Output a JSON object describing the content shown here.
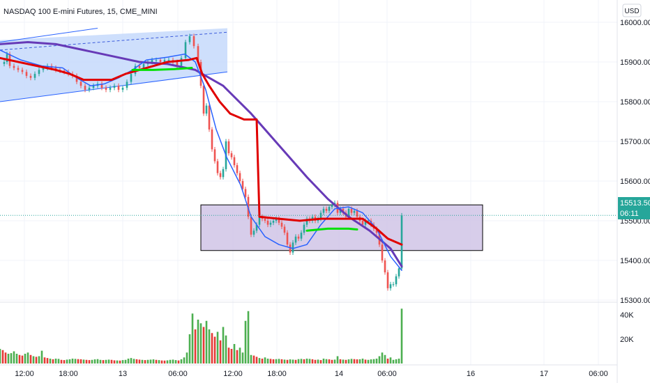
{
  "header": {
    "symbol_title": "NASDAQ 100 E-mini Futures, 15, CME_MINI",
    "currency_button": "USD"
  },
  "price_tag": {
    "price": "15513.50",
    "countdown": "06:11",
    "color": "#26a69a"
  },
  "colors": {
    "up": "#26a69a",
    "down": "#ef5350",
    "vol_up": "#4caf50",
    "vol_down": "#e53935",
    "channel_fill": "#c5d9fb",
    "channel_line": "#2962ff",
    "zone_fill": "#d3c8e8",
    "ma_purple": "#673ab7",
    "ma_blue": "#2962ff",
    "ma_red": "#e00000",
    "ma_green": "#00e000",
    "grid": "#f0f3fa"
  },
  "chart_data": {
    "type": "line",
    "title": "NASDAQ 100 E-mini Futures, 15, CME_MINI",
    "xlabel": "",
    "ylabel": "",
    "x_tick_labels": [
      "12:00",
      "18:00",
      "13",
      "06:00",
      "12:00",
      "18:00",
      "14",
      "06:00",
      "16",
      "17",
      "06:00"
    ],
    "y_tick_labels": [
      "16000.00",
      "15900.00",
      "15800.00",
      "15700.00",
      "15600.00",
      "15500.00",
      "15400.00",
      "15300.00"
    ],
    "y_tick_values": [
      16000,
      15900,
      15800,
      15700,
      15600,
      15500,
      15400,
      15300
    ],
    "volume_tick_labels": [
      "40K",
      "20K"
    ],
    "volume_tick_values": [
      40000,
      20000
    ],
    "ylim": [
      15270,
      16030
    ],
    "volume_ylim": [
      0,
      47000
    ],
    "last_price": 15513.5,
    "price_path": [
      [
        0,
        15895
      ],
      [
        6,
        15900
      ],
      [
        10,
        15920
      ],
      [
        14,
        15890
      ],
      [
        20,
        15885
      ],
      [
        26,
        15880
      ],
      [
        32,
        15875
      ],
      [
        38,
        15865
      ],
      [
        44,
        15860
      ],
      [
        50,
        15870
      ],
      [
        56,
        15880
      ],
      [
        62,
        15885
      ],
      [
        68,
        15890
      ],
      [
        74,
        15885
      ],
      [
        80,
        15880
      ],
      [
        86,
        15878
      ],
      [
        92,
        15875
      ],
      [
        98,
        15870
      ],
      [
        104,
        15865
      ],
      [
        110,
        15850
      ],
      [
        116,
        15840
      ],
      [
        122,
        15830
      ],
      [
        128,
        15835
      ],
      [
        134,
        15840
      ],
      [
        140,
        15845
      ],
      [
        146,
        15835
      ],
      [
        152,
        15830
      ],
      [
        158,
        15835
      ],
      [
        164,
        15840
      ],
      [
        170,
        15830
      ],
      [
        176,
        15835
      ],
      [
        182,
        15850
      ],
      [
        188,
        15870
      ],
      [
        194,
        15890
      ],
      [
        200,
        15885
      ],
      [
        206,
        15895
      ],
      [
        212,
        15900
      ],
      [
        218,
        15905
      ],
      [
        224,
        15905
      ],
      [
        230,
        15900
      ],
      [
        236,
        15905
      ],
      [
        242,
        15905
      ],
      [
        248,
        15900
      ],
      [
        254,
        15890
      ],
      [
        260,
        15910
      ],
      [
        266,
        15950
      ],
      [
        272,
        15965
      ],
      [
        278,
        15940
      ],
      [
        284,
        15900
      ],
      [
        288,
        15840
      ],
      [
        292,
        15770
      ],
      [
        296,
        15790
      ],
      [
        300,
        15730
      ],
      [
        304,
        15680
      ],
      [
        308,
        15650
      ],
      [
        312,
        15620
      ],
      [
        316,
        15610
      ],
      [
        320,
        15630
      ],
      [
        324,
        15700
      ],
      [
        328,
        15670
      ],
      [
        332,
        15660
      ],
      [
        336,
        15640
      ],
      [
        340,
        15620
      ],
      [
        344,
        15600
      ],
      [
        348,
        15580
      ],
      [
        352,
        15560
      ],
      [
        356,
        15510
      ],
      [
        360,
        15465
      ],
      [
        364,
        15475
      ],
      [
        368,
        15490
      ],
      [
        372,
        15510
      ],
      [
        376,
        15505
      ],
      [
        380,
        15500
      ],
      [
        384,
        15490
      ],
      [
        388,
        15495
      ],
      [
        392,
        15500
      ],
      [
        396,
        15505
      ],
      [
        400,
        15495
      ],
      [
        404,
        15485
      ],
      [
        408,
        15470
      ],
      [
        412,
        15440
      ],
      [
        416,
        15420
      ],
      [
        420,
        15445
      ],
      [
        424,
        15460
      ],
      [
        428,
        15455
      ],
      [
        432,
        15470
      ],
      [
        436,
        15490
      ],
      [
        440,
        15505
      ],
      [
        444,
        15500
      ],
      [
        448,
        15510
      ],
      [
        452,
        15500
      ],
      [
        456,
        15505
      ],
      [
        460,
        15520
      ],
      [
        464,
        15530
      ],
      [
        468,
        15525
      ],
      [
        472,
        15535
      ],
      [
        476,
        15540
      ],
      [
        480,
        15545
      ],
      [
        484,
        15520
      ],
      [
        488,
        15530
      ],
      [
        492,
        15520
      ],
      [
        496,
        15510
      ],
      [
        500,
        15530
      ],
      [
        504,
        15520
      ],
      [
        508,
        15525
      ],
      [
        512,
        15510
      ],
      [
        516,
        15500
      ],
      [
        520,
        15490
      ],
      [
        524,
        15500
      ],
      [
        528,
        15500
      ],
      [
        532,
        15490
      ],
      [
        536,
        15480
      ],
      [
        540,
        15470
      ],
      [
        544,
        15440
      ],
      [
        548,
        15400
      ],
      [
        552,
        15370
      ],
      [
        556,
        15330
      ],
      [
        560,
        15340
      ],
      [
        564,
        15340
      ],
      [
        568,
        15360
      ],
      [
        572,
        15380
      ],
      [
        576,
        15513.5
      ]
    ],
    "volume_path": [
      [
        0,
        12000
      ],
      [
        4,
        11000
      ],
      [
        8,
        9000
      ],
      [
        12,
        8000
      ],
      [
        16,
        8500
      ],
      [
        20,
        10000
      ],
      [
        24,
        8000
      ],
      [
        28,
        7000
      ],
      [
        32,
        6500
      ],
      [
        36,
        8000
      ],
      [
        40,
        9000
      ],
      [
        44,
        7000
      ],
      [
        48,
        6000
      ],
      [
        52,
        5500
      ],
      [
        56,
        6000
      ],
      [
        60,
        10500
      ],
      [
        64,
        5000
      ],
      [
        68,
        4500
      ],
      [
        72,
        4000
      ],
      [
        76,
        3500
      ],
      [
        80,
        4000
      ],
      [
        84,
        3800
      ],
      [
        88,
        3000
      ],
      [
        92,
        2800
      ],
      [
        96,
        3200
      ],
      [
        100,
        3500
      ],
      [
        104,
        4000
      ],
      [
        108,
        3800
      ],
      [
        112,
        3600
      ],
      [
        116,
        3500
      ],
      [
        120,
        3200
      ],
      [
        124,
        3000
      ],
      [
        128,
        2800
      ],
      [
        132,
        3000
      ],
      [
        136,
        3400
      ],
      [
        140,
        3600
      ],
      [
        144,
        3000
      ],
      [
        148,
        2800
      ],
      [
        152,
        3000
      ],
      [
        156,
        3200
      ],
      [
        160,
        3000
      ],
      [
        164,
        2600
      ],
      [
        168,
        2500
      ],
      [
        172,
        2400
      ],
      [
        176,
        2800
      ],
      [
        180,
        3000
      ],
      [
        184,
        4000
      ],
      [
        188,
        4500
      ],
      [
        192,
        3800
      ],
      [
        196,
        3500
      ],
      [
        200,
        3200
      ],
      [
        204,
        3000
      ],
      [
        208,
        2800
      ],
      [
        212,
        3000
      ],
      [
        216,
        3200
      ],
      [
        220,
        3400
      ],
      [
        224,
        3000
      ],
      [
        228,
        2800
      ],
      [
        232,
        2500
      ],
      [
        236,
        2400
      ],
      [
        240,
        2600
      ],
      [
        244,
        3000
      ],
      [
        248,
        3200
      ],
      [
        252,
        2800
      ],
      [
        256,
        2500
      ],
      [
        260,
        3500
      ],
      [
        264,
        5000
      ],
      [
        268,
        9000
      ],
      [
        272,
        24000
      ],
      [
        276,
        41000
      ],
      [
        280,
        28000
      ],
      [
        284,
        36000
      ],
      [
        288,
        33000
      ],
      [
        292,
        30000
      ],
      [
        296,
        35000
      ],
      [
        300,
        28000
      ],
      [
        304,
        25000
      ],
      [
        308,
        22000
      ],
      [
        312,
        26000
      ],
      [
        316,
        19000
      ],
      [
        320,
        30000
      ],
      [
        324,
        23000
      ],
      [
        328,
        13000
      ],
      [
        332,
        12000
      ],
      [
        336,
        16000
      ],
      [
        340,
        11000
      ],
      [
        344,
        13000
      ],
      [
        348,
        9000
      ],
      [
        352,
        35000
      ],
      [
        356,
        43000
      ],
      [
        360,
        7000
      ],
      [
        364,
        6500
      ],
      [
        368,
        5500
      ],
      [
        372,
        4500
      ],
      [
        376,
        4000
      ],
      [
        380,
        5000
      ],
      [
        384,
        4000
      ],
      [
        388,
        3800
      ],
      [
        392,
        3500
      ],
      [
        396,
        3600
      ],
      [
        400,
        3800
      ],
      [
        404,
        3500
      ],
      [
        408,
        3200
      ],
      [
        412,
        3000
      ],
      [
        416,
        3400
      ],
      [
        420,
        3200
      ],
      [
        424,
        3000
      ],
      [
        428,
        3600
      ],
      [
        432,
        3800
      ],
      [
        436,
        3500
      ],
      [
        440,
        4000
      ],
      [
        444,
        3800
      ],
      [
        448,
        3500
      ],
      [
        452,
        3000
      ],
      [
        456,
        3200
      ],
      [
        460,
        2800
      ],
      [
        464,
        4000
      ],
      [
        468,
        3600
      ],
      [
        472,
        3400
      ],
      [
        476,
        3000
      ],
      [
        480,
        3200
      ],
      [
        484,
        6000
      ],
      [
        488,
        3500
      ],
      [
        492,
        3200
      ],
      [
        496,
        3000
      ],
      [
        500,
        3400
      ],
      [
        504,
        3800
      ],
      [
        508,
        3600
      ],
      [
        512,
        3400
      ],
      [
        516,
        3500
      ],
      [
        520,
        4000
      ],
      [
        524,
        3200
      ],
      [
        528,
        3000
      ],
      [
        532,
        3400
      ],
      [
        536,
        3600
      ],
      [
        540,
        4000
      ],
      [
        544,
        6000
      ],
      [
        548,
        9000
      ],
      [
        552,
        7000
      ],
      [
        556,
        4000
      ],
      [
        560,
        5000
      ],
      [
        564,
        3000
      ],
      [
        568,
        3500
      ],
      [
        572,
        4000
      ],
      [
        576,
        45000
      ]
    ],
    "moving_averages": [
      {
        "color": "#673ab7",
        "points": [
          [
            0,
            15945
          ],
          [
            40,
            15950
          ],
          [
            80,
            15945
          ],
          [
            120,
            15930
          ],
          [
            160,
            15915
          ],
          [
            200,
            15900
          ],
          [
            240,
            15895
          ],
          [
            280,
            15880
          ],
          [
            320,
            15840
          ],
          [
            360,
            15770
          ],
          [
            400,
            15690
          ],
          [
            440,
            15610
          ],
          [
            470,
            15555
          ],
          [
            500,
            15510
          ],
          [
            530,
            15475
          ],
          [
            560,
            15430
          ],
          [
            576,
            15385
          ]
        ]
      },
      {
        "color": "#2962ff",
        "points": [
          [
            0,
            15930
          ],
          [
            30,
            15905
          ],
          [
            60,
            15890
          ],
          [
            90,
            15885
          ],
          [
            110,
            15860
          ],
          [
            130,
            15840
          ],
          [
            150,
            15845
          ],
          [
            170,
            15860
          ],
          [
            190,
            15880
          ],
          [
            210,
            15905
          ],
          [
            240,
            15912
          ],
          [
            265,
            15920
          ],
          [
            280,
            15900
          ],
          [
            295,
            15830
          ],
          [
            310,
            15730
          ],
          [
            325,
            15660
          ],
          [
            345,
            15590
          ],
          [
            360,
            15510
          ],
          [
            380,
            15460
          ],
          [
            400,
            15440
          ],
          [
            420,
            15430
          ],
          [
            440,
            15440
          ],
          [
            460,
            15490
          ],
          [
            480,
            15530
          ],
          [
            500,
            15535
          ],
          [
            520,
            15520
          ],
          [
            540,
            15480
          ],
          [
            560,
            15410
          ],
          [
            576,
            15375
          ]
        ]
      },
      {
        "color": "#e00000",
        "points": [
          [
            0,
            15910
          ],
          [
            40,
            15895
          ],
          [
            80,
            15880
          ],
          [
            100,
            15870
          ],
          [
            120,
            15855
          ],
          [
            140,
            15855
          ],
          [
            160,
            15855
          ],
          [
            180,
            15870
          ],
          [
            200,
            15880
          ],
          [
            240,
            15900
          ],
          [
            270,
            15905
          ],
          [
            282,
            15910
          ],
          [
            290,
            15870
          ],
          [
            300,
            15840
          ],
          [
            315,
            15800
          ],
          [
            330,
            15770
          ],
          [
            350,
            15755
          ],
          [
            368,
            15755
          ],
          [
            372,
            15510
          ],
          [
            400,
            15505
          ],
          [
            430,
            15500
          ],
          [
            460,
            15505
          ],
          [
            500,
            15505
          ],
          [
            520,
            15505
          ],
          [
            540,
            15480
          ],
          [
            556,
            15455
          ],
          [
            576,
            15440
          ]
        ]
      },
      {
        "color": "#00e000",
        "segments": [
          [
            [
              190,
              15880
            ],
            [
              220,
              15880
            ],
            [
              250,
              15882
            ],
            [
              275,
              15885
            ]
          ],
          [
            [
              440,
              15475
            ],
            [
              470,
              15480
            ],
            [
              500,
              15480
            ],
            [
              512,
              15478
            ]
          ]
        ]
      }
    ],
    "annotations": {
      "channel": {
        "x_start": 0,
        "x_end": 326,
        "top": [
          15955,
          15985
        ],
        "bottom": [
          15800,
          15875
        ]
      },
      "channel_dashed": [
        [
          0,
          15930
        ],
        [
          326,
          15975
        ]
      ],
      "zone": {
        "x_start": 288,
        "x_end": 692,
        "top": 15540,
        "bottom": 15425
      }
    },
    "grid": true,
    "legend": "none"
  }
}
